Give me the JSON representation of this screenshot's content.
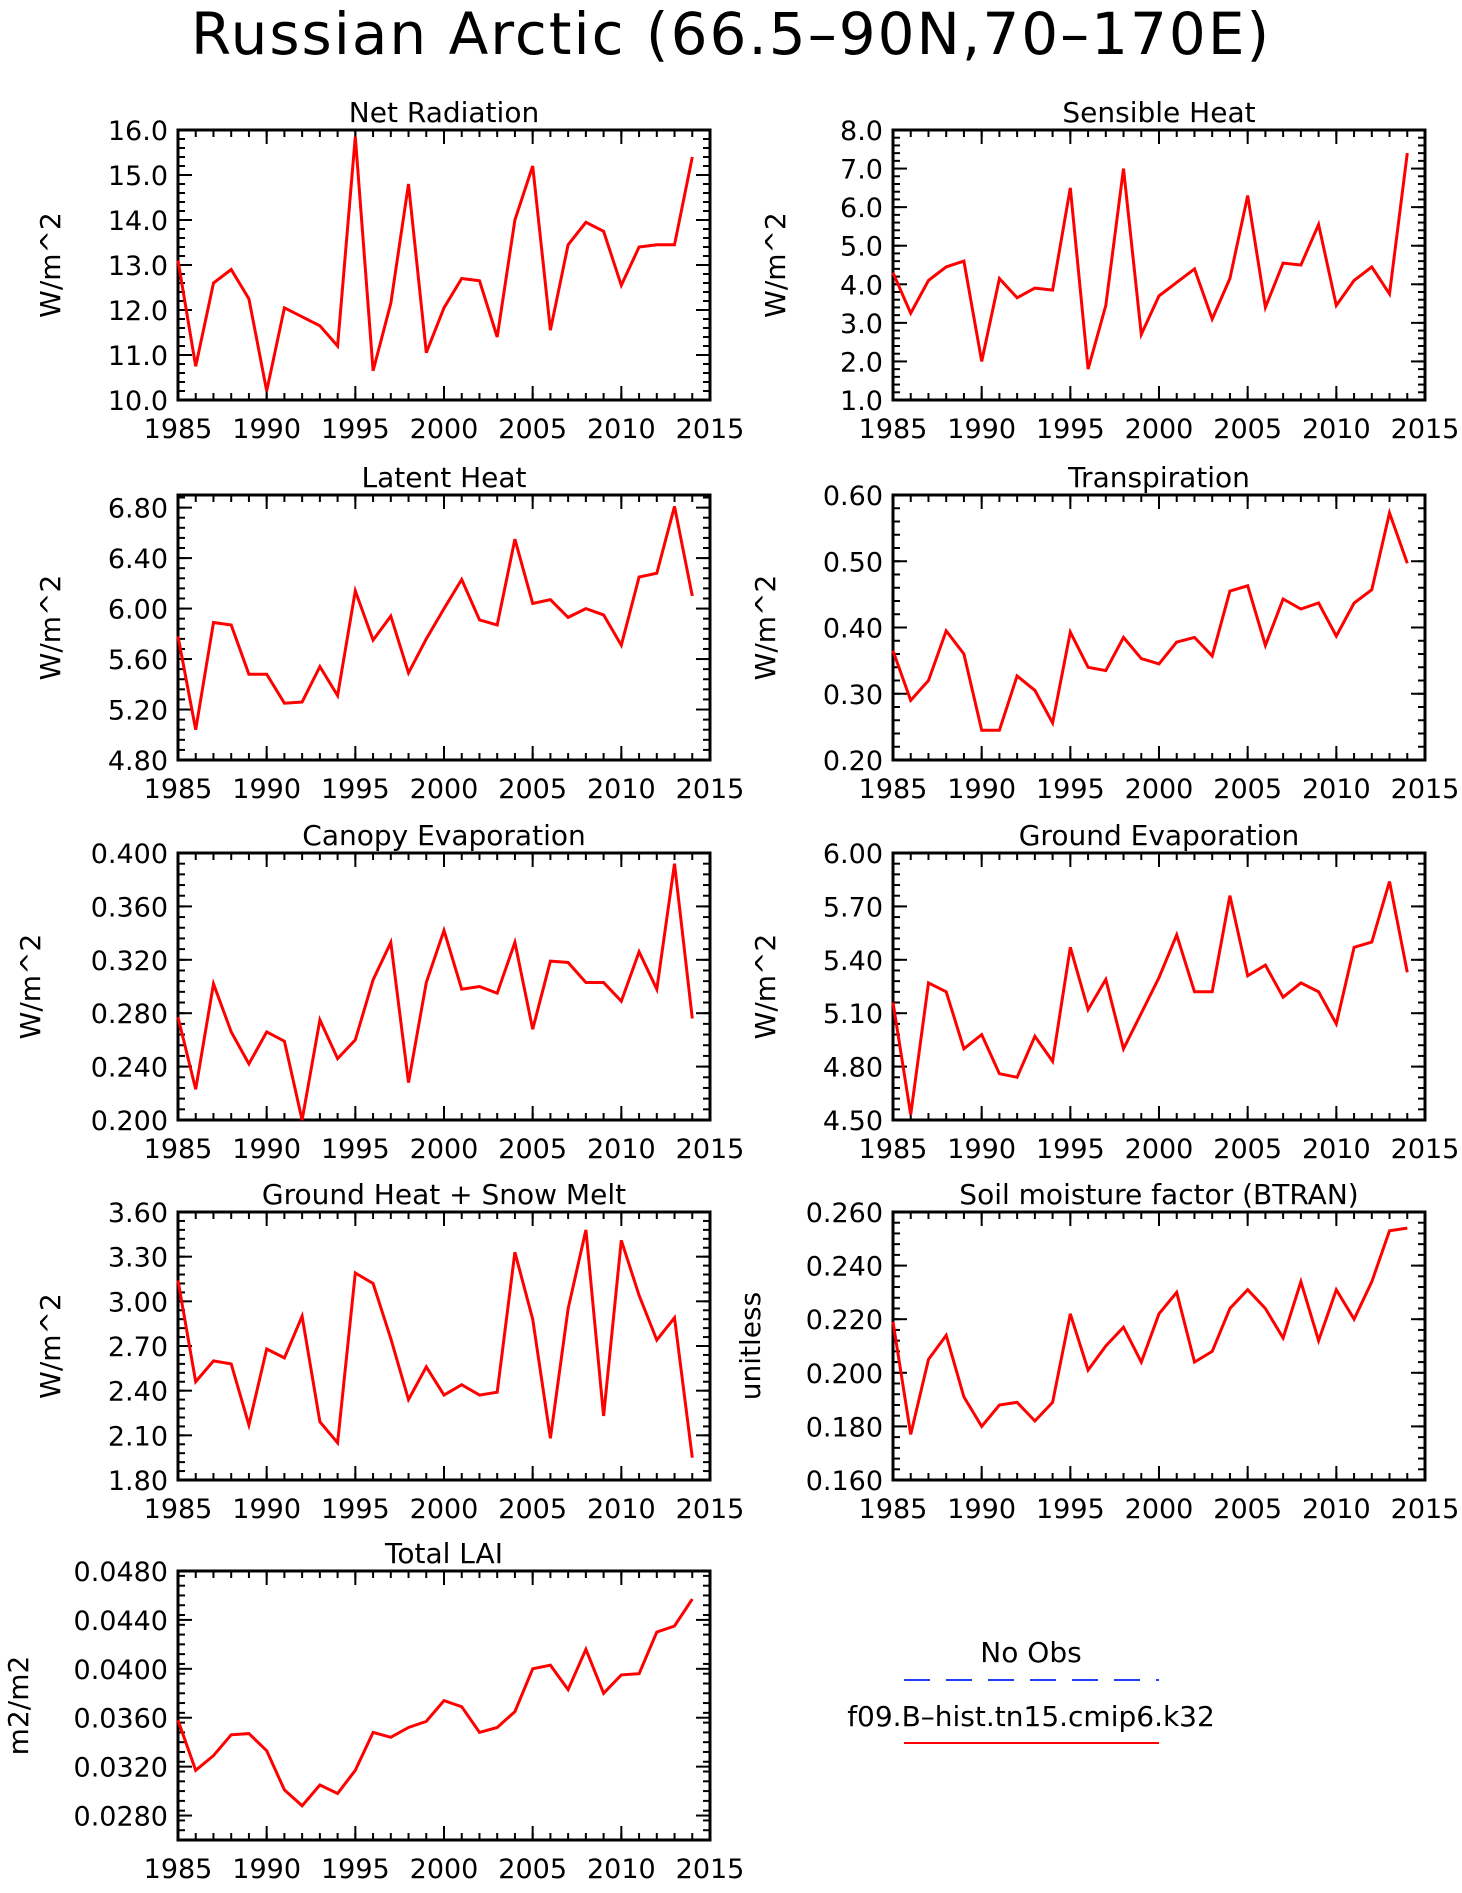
{
  "title": "Russian Arctic (66.5–90N,70–170E)",
  "legend": {
    "items": [
      {
        "label": "No Obs",
        "color": "#2040ff",
        "style": "dashed"
      },
      {
        "label": "f09.B–hist.tn15.cmip6.k32",
        "color": "#ff0000",
        "style": "solid"
      }
    ]
  },
  "colors": {
    "series": "#ff0000",
    "axis": "#000000"
  },
  "chart_data": [
    {
      "type": "line",
      "title": "Net Radiation",
      "ylabel": "W/m^2",
      "xlim": [
        1985,
        2015
      ],
      "ylim": [
        10.0,
        16.0
      ],
      "xticks": [
        "1985",
        "1990",
        "1995",
        "2000",
        "2005",
        "2010",
        "2015"
      ],
      "yticks": [
        "10.0",
        "11.0",
        "12.0",
        "13.0",
        "14.0",
        "15.0",
        "16.0"
      ],
      "x": [
        1985,
        1986,
        1987,
        1988,
        1989,
        1990,
        1991,
        1992,
        1993,
        1994,
        1995,
        1996,
        1997,
        1998,
        1999,
        2000,
        2001,
        2002,
        2003,
        2004,
        2005,
        2006,
        2007,
        2008,
        2009,
        2010,
        2011,
        2012,
        2013,
        2014
      ],
      "series": [
        {
          "values": [
            13.1,
            10.75,
            12.6,
            12.9,
            12.25,
            10.2,
            12.05,
            11.85,
            11.65,
            11.2,
            15.85,
            10.65,
            12.15,
            14.8,
            11.05,
            12.05,
            12.7,
            12.65,
            11.4,
            14.0,
            15.2,
            11.55,
            13.45,
            13.95,
            13.75,
            12.55,
            13.4,
            13.45,
            13.45,
            15.4
          ]
        }
      ]
    },
    {
      "type": "line",
      "title": "Sensible Heat",
      "ylabel": "W/m^2",
      "xlim": [
        1985,
        2015
      ],
      "ylim": [
        1.0,
        8.0
      ],
      "xticks": [
        "1985",
        "1990",
        "1995",
        "2000",
        "2005",
        "2010",
        "2015"
      ],
      "yticks": [
        "1.0",
        "2.0",
        "3.0",
        "4.0",
        "5.0",
        "6.0",
        "7.0",
        "8.0"
      ],
      "x": [
        1985,
        1986,
        1987,
        1988,
        1989,
        1990,
        1991,
        1992,
        1993,
        1994,
        1995,
        1996,
        1997,
        1998,
        1999,
        2000,
        2001,
        2002,
        2003,
        2004,
        2005,
        2006,
        2007,
        2008,
        2009,
        2010,
        2011,
        2012,
        2013,
        2014
      ],
      "series": [
        {
          "values": [
            4.3,
            3.25,
            4.1,
            4.45,
            4.6,
            2.0,
            4.15,
            3.65,
            3.9,
            3.85,
            6.5,
            1.8,
            3.45,
            7.0,
            2.7,
            3.7,
            4.05,
            4.4,
            3.1,
            4.15,
            6.3,
            3.4,
            4.55,
            4.5,
            5.55,
            3.45,
            4.1,
            4.45,
            3.75,
            7.4
          ]
        }
      ]
    },
    {
      "type": "line",
      "title": "Latent Heat",
      "ylabel": "W/m^2",
      "xlim": [
        1985,
        2015
      ],
      "ylim": [
        4.8,
        6.9
      ],
      "xticks": [
        "1985",
        "1990",
        "1995",
        "2000",
        "2005",
        "2010",
        "2015"
      ],
      "yticks": [
        "4.80",
        "5.20",
        "5.60",
        "6.00",
        "6.40",
        "6.80"
      ],
      "x": [
        1985,
        1986,
        1987,
        1988,
        1989,
        1990,
        1991,
        1992,
        1993,
        1994,
        1995,
        1996,
        1997,
        1998,
        1999,
        2000,
        2001,
        2002,
        2003,
        2004,
        2005,
        2006,
        2007,
        2008,
        2009,
        2010,
        2011,
        2012,
        2013,
        2014
      ],
      "series": [
        {
          "values": [
            5.78,
            5.04,
            5.89,
            5.87,
            5.48,
            5.48,
            5.25,
            5.26,
            5.54,
            5.31,
            6.14,
            5.75,
            5.94,
            5.49,
            5.76,
            6.0,
            6.23,
            5.91,
            5.87,
            6.55,
            6.04,
            6.07,
            5.93,
            6.0,
            5.95,
            5.71,
            6.25,
            6.28,
            6.81,
            6.1
          ]
        }
      ]
    },
    {
      "type": "line",
      "title": "Transpiration",
      "ylabel": "W/m^2",
      "xlim": [
        1985,
        2015
      ],
      "ylim": [
        0.2,
        0.6
      ],
      "xticks": [
        "1985",
        "1990",
        "1995",
        "2000",
        "2005",
        "2010",
        "2015"
      ],
      "yticks": [
        "0.20",
        "0.30",
        "0.40",
        "0.50",
        "0.60"
      ],
      "x": [
        1985,
        1986,
        1987,
        1988,
        1989,
        1990,
        1991,
        1992,
        1993,
        1994,
        1995,
        1996,
        1997,
        1998,
        1999,
        2000,
        2001,
        2002,
        2003,
        2004,
        2005,
        2006,
        2007,
        2008,
        2009,
        2010,
        2011,
        2012,
        2013,
        2014
      ],
      "series": [
        {
          "values": [
            0.365,
            0.29,
            0.32,
            0.395,
            0.36,
            0.245,
            0.245,
            0.327,
            0.305,
            0.256,
            0.393,
            0.34,
            0.335,
            0.385,
            0.353,
            0.345,
            0.378,
            0.385,
            0.357,
            0.455,
            0.463,
            0.373,
            0.443,
            0.428,
            0.437,
            0.387,
            0.437,
            0.457,
            0.573,
            0.497
          ]
        }
      ]
    },
    {
      "type": "line",
      "title": "Canopy Evaporation",
      "ylabel": "W/m^2",
      "xlim": [
        1985,
        2015
      ],
      "ylim": [
        0.2,
        0.4
      ],
      "xticks": [
        "1985",
        "1990",
        "1995",
        "2000",
        "2005",
        "2010",
        "2015"
      ],
      "yticks": [
        "0.200",
        "0.240",
        "0.280",
        "0.320",
        "0.360",
        "0.400"
      ],
      "x": [
        1985,
        1986,
        1987,
        1988,
        1989,
        1990,
        1991,
        1992,
        1993,
        1994,
        1995,
        1996,
        1997,
        1998,
        1999,
        2000,
        2001,
        2002,
        2003,
        2004,
        2005,
        2006,
        2007,
        2008,
        2009,
        2010,
        2011,
        2012,
        2013,
        2014
      ],
      "series": [
        {
          "values": [
            0.277,
            0.223,
            0.302,
            0.266,
            0.242,
            0.266,
            0.259,
            0.2,
            0.275,
            0.246,
            0.26,
            0.305,
            0.333,
            0.228,
            0.303,
            0.342,
            0.298,
            0.3,
            0.295,
            0.333,
            0.268,
            0.319,
            0.318,
            0.303,
            0.303,
            0.289,
            0.326,
            0.298,
            0.392,
            0.276
          ]
        }
      ]
    },
    {
      "type": "line",
      "title": "Ground Evaporation",
      "ylabel": "W/m^2",
      "xlim": [
        1985,
        2015
      ],
      "ylim": [
        4.5,
        6.0
      ],
      "xticks": [
        "1985",
        "1990",
        "1995",
        "2000",
        "2005",
        "2010",
        "2015"
      ],
      "yticks": [
        "4.50",
        "4.80",
        "5.10",
        "5.40",
        "5.70",
        "6.00"
      ],
      "x": [
        1985,
        1986,
        1987,
        1988,
        1989,
        1990,
        1991,
        1992,
        1993,
        1994,
        1995,
        1996,
        1997,
        1998,
        1999,
        2000,
        2001,
        2002,
        2003,
        2004,
        2005,
        2006,
        2007,
        2008,
        2009,
        2010,
        2011,
        2012,
        2013,
        2014
      ],
      "series": [
        {
          "values": [
            5.16,
            4.53,
            5.27,
            5.22,
            4.9,
            4.98,
            4.76,
            4.74,
            4.97,
            4.83,
            5.47,
            5.12,
            5.29,
            4.9,
            5.1,
            5.3,
            5.54,
            5.22,
            5.22,
            5.76,
            5.31,
            5.37,
            5.19,
            5.27,
            5.22,
            5.04,
            5.47,
            5.5,
            5.84,
            5.33
          ]
        }
      ]
    },
    {
      "type": "line",
      "title": "Ground Heat + Snow Melt",
      "ylabel": "W/m^2",
      "xlim": [
        1985,
        2015
      ],
      "ylim": [
        1.8,
        3.6
      ],
      "xticks": [
        "1985",
        "1990",
        "1995",
        "2000",
        "2005",
        "2010",
        "2015"
      ],
      "yticks": [
        "1.80",
        "2.10",
        "2.40",
        "2.70",
        "3.00",
        "3.30",
        "3.60"
      ],
      "x": [
        1985,
        1986,
        1987,
        1988,
        1989,
        1990,
        1991,
        1992,
        1993,
        1994,
        1995,
        1996,
        1997,
        1998,
        1999,
        2000,
        2001,
        2002,
        2003,
        2004,
        2005,
        2006,
        2007,
        2008,
        2009,
        2010,
        2011,
        2012,
        2013,
        2014
      ],
      "series": [
        {
          "values": [
            3.14,
            2.46,
            2.6,
            2.58,
            2.17,
            2.68,
            2.62,
            2.9,
            2.19,
            2.05,
            3.19,
            3.12,
            2.75,
            2.34,
            2.56,
            2.37,
            2.44,
            2.37,
            2.39,
            3.33,
            2.88,
            2.08,
            2.95,
            3.48,
            2.23,
            3.41,
            3.04,
            2.74,
            2.89,
            1.95
          ]
        }
      ]
    },
    {
      "type": "line",
      "title": "Soil moisture factor (BTRAN)",
      "ylabel": "unitless",
      "xlim": [
        1985,
        2015
      ],
      "ylim": [
        0.16,
        0.26
      ],
      "xticks": [
        "1985",
        "1990",
        "1995",
        "2000",
        "2005",
        "2010",
        "2015"
      ],
      "yticks": [
        "0.160",
        "0.180",
        "0.200",
        "0.220",
        "0.240",
        "0.260"
      ],
      "x": [
        1985,
        1986,
        1987,
        1988,
        1989,
        1990,
        1991,
        1992,
        1993,
        1994,
        1995,
        1996,
        1997,
        1998,
        1999,
        2000,
        2001,
        2002,
        2003,
        2004,
        2005,
        2006,
        2007,
        2008,
        2009,
        2010,
        2011,
        2012,
        2013,
        2014
      ],
      "series": [
        {
          "values": [
            0.219,
            0.177,
            0.205,
            0.214,
            0.191,
            0.18,
            0.188,
            0.189,
            0.182,
            0.189,
            0.222,
            0.201,
            0.21,
            0.217,
            0.204,
            0.222,
            0.23,
            0.204,
            0.208,
            0.224,
            0.231,
            0.224,
            0.213,
            0.234,
            0.212,
            0.231,
            0.22,
            0.234,
            0.253,
            0.254
          ]
        }
      ]
    },
    {
      "type": "line",
      "title": "Total LAI",
      "ylabel": "m2/m2",
      "xlim": [
        1985,
        2015
      ],
      "ylim": [
        0.026,
        0.048
      ],
      "xticks": [
        "1985",
        "1990",
        "1995",
        "2000",
        "2005",
        "2010",
        "2015"
      ],
      "yticks": [
        "0.0280",
        "0.0320",
        "0.0360",
        "0.0400",
        "0.0440",
        "0.0480"
      ],
      "x": [
        1985,
        1986,
        1987,
        1988,
        1989,
        1990,
        1991,
        1992,
        1993,
        1994,
        1995,
        1996,
        1997,
        1998,
        1999,
        2000,
        2001,
        2002,
        2003,
        2004,
        2005,
        2006,
        2007,
        2008,
        2009,
        2010,
        2011,
        2012,
        2013,
        2014
      ],
      "series": [
        {
          "values": [
            0.0358,
            0.0317,
            0.0329,
            0.0346,
            0.0347,
            0.0333,
            0.0301,
            0.0288,
            0.0305,
            0.0298,
            0.0317,
            0.0348,
            0.0344,
            0.0352,
            0.0357,
            0.0374,
            0.0369,
            0.0348,
            0.0352,
            0.0365,
            0.04,
            0.0403,
            0.0383,
            0.0416,
            0.038,
            0.0395,
            0.0396,
            0.043,
            0.0435,
            0.0457
          ]
        }
      ]
    }
  ]
}
